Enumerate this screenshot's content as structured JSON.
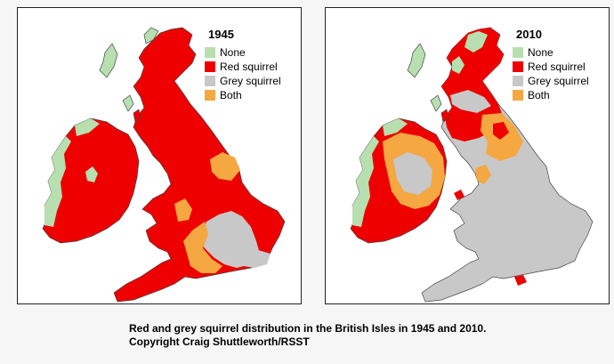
{
  "maps": [
    {
      "year": "1945",
      "legend": [
        {
          "label": "None",
          "color": "#b8dfb0"
        },
        {
          "label": "Red squirrel",
          "color": "#ee0000"
        },
        {
          "label": "Grey squirrel",
          "color": "#c8c8c8"
        },
        {
          "label": "Both",
          "color": "#f5a742"
        }
      ]
    },
    {
      "year": "2010",
      "legend": [
        {
          "label": "None",
          "color": "#b8dfb0"
        },
        {
          "label": "Red squirrel",
          "color": "#ee0000"
        },
        {
          "label": "Grey squirrel",
          "color": "#c8c8c8"
        },
        {
          "label": "Both",
          "color": "#f5a742"
        }
      ]
    }
  ],
  "caption": {
    "line1": "Red and grey squirrel distribution in the British Isles in 1945 and 2010.",
    "line2": "Copyright Craig Shuttleworth/RSST"
  }
}
